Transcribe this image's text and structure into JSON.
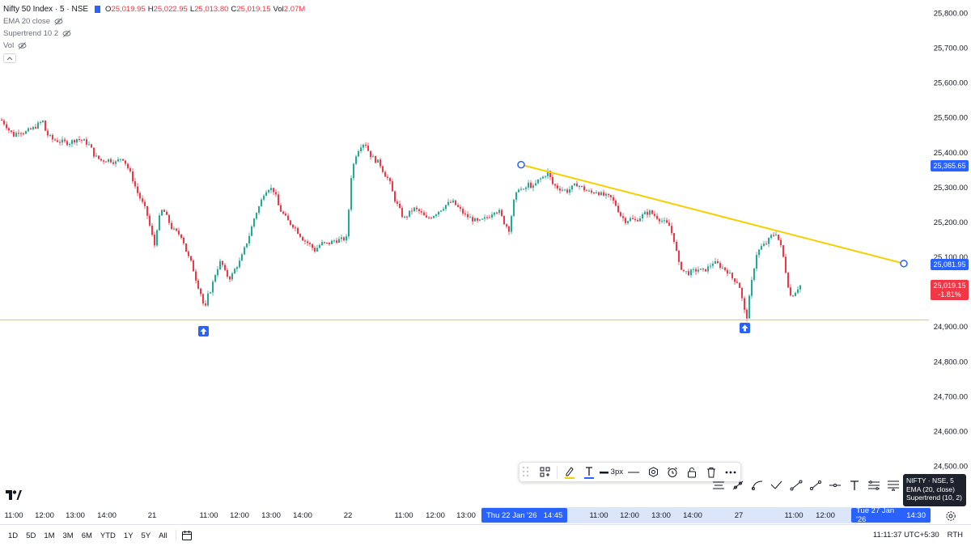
{
  "legend": {
    "title": "Nifty 50 Index · 5 · NSE",
    "ohlc": [
      {
        "key": "O",
        "value": "25,019.95"
      },
      {
        "key": "H",
        "value": "25,022.95"
      },
      {
        "key": "L",
        "value": "25,013.80"
      },
      {
        "key": "C",
        "value": "25,019.15"
      },
      {
        "key": "Vol",
        "value": "2.07M"
      }
    ],
    "indicators": [
      "EMA 20 close",
      "Supertrend 10 2",
      "Vol"
    ]
  },
  "price_axis": {
    "ticks": [
      "25,800.00",
      "25,700.00",
      "25,600.00",
      "25,500.00",
      "25,400.00",
      "25,300.00",
      "25,200.00",
      "25,100.00",
      "25,000.00",
      "24,900.00",
      "24,800.00",
      "24,700.00",
      "24,600.00",
      "24,500.00"
    ],
    "label_trend_start": "25,365.65",
    "label_trend_end": "25,081.95",
    "last_price": "25,019.15",
    "last_change": "-1.81%"
  },
  "time_axis": {
    "ticks": [
      "11:00",
      "12:00",
      "13:00",
      "14:00",
      "21",
      "11:00",
      "12:00",
      "13:00",
      "14:00",
      "22",
      "11:00",
      "12:00",
      "13:00",
      "11:00",
      "12:00",
      "13:00",
      "14:00",
      "27",
      "11:00",
      "12:00"
    ],
    "cursor_start": "Thu 22 Jan '26",
    "cursor_start_time": "14:45",
    "cursor_end": "Tue 27 Jan '26",
    "cursor_end_time": "14:30"
  },
  "drawing_toolbar": {
    "stroke_width": "3px"
  },
  "tooltip": {
    "line1": "NIFTY · NSE, 5",
    "line2": "EMA (20, close)",
    "line3": "Supertrend (10, 2)"
  },
  "bottom_bar": {
    "ranges": [
      "1D",
      "5D",
      "1M",
      "3M",
      "6M",
      "YTD",
      "1Y",
      "5Y",
      "All"
    ],
    "clock": "11:11:37 UTC+5:30",
    "session": "RTH"
  },
  "colors": {
    "up": "#22ab94",
    "down": "#f23645",
    "trendline": "#f5d000",
    "support": "#f5d000",
    "accent": "#2962ff"
  },
  "chart_data": {
    "type": "candlestick",
    "interval": "5m",
    "symbol": "Nifty 50 Index",
    "ylim": [
      24450,
      25850
    ],
    "support_level": 24920,
    "trendline": {
      "start_price": 25365.65,
      "end_price": 25081.95
    },
    "buy_markers": 2,
    "path": [
      [
        0,
        25495
      ],
      [
        6,
        25480
      ],
      [
        10,
        25465
      ],
      [
        16,
        25450
      ],
      [
        22,
        25462
      ],
      [
        30,
        25458
      ],
      [
        40,
        25470
      ],
      [
        48,
        25485
      ],
      [
        52,
        25490
      ],
      [
        56,
        25455
      ],
      [
        64,
        25438
      ],
      [
        74,
        25432
      ],
      [
        84,
        25428
      ],
      [
        94,
        25440
      ],
      [
        104,
        25432
      ],
      [
        110,
        25420
      ],
      [
        116,
        25390
      ],
      [
        124,
        25378
      ],
      [
        134,
        25380
      ],
      [
        142,
        25372
      ],
      [
        150,
        25388
      ],
      [
        156,
        25362
      ],
      [
        162,
        25330
      ],
      [
        168,
        25290
      ],
      [
        174,
        25260
      ],
      [
        180,
        25230
      ],
      [
        186,
        25170
      ],
      [
        190,
        25135
      ],
      [
        194,
        25200
      ],
      [
        200,
        25240
      ],
      [
        206,
        25210
      ],
      [
        212,
        25180
      ],
      [
        218,
        25170
      ],
      [
        224,
        25160
      ],
      [
        230,
        25110
      ],
      [
        236,
        25080
      ],
      [
        242,
        25030
      ],
      [
        248,
        24990
      ],
      [
        252,
        24945
      ],
      [
        256,
        24990
      ],
      [
        260,
        25010
      ],
      [
        266,
        25060
      ],
      [
        272,
        25090
      ],
      [
        278,
        25050
      ],
      [
        284,
        25040
      ],
      [
        290,
        25070
      ],
      [
        296,
        25090
      ],
      [
        302,
        25130
      ],
      [
        308,
        25170
      ],
      [
        314,
        25220
      ],
      [
        320,
        25250
      ],
      [
        326,
        25290
      ],
      [
        332,
        25300
      ],
      [
        338,
        25290
      ],
      [
        344,
        25240
      ],
      [
        350,
        25220
      ],
      [
        356,
        25200
      ],
      [
        362,
        25190
      ],
      [
        368,
        25170
      ],
      [
        374,
        25150
      ],
      [
        380,
        25140
      ],
      [
        388,
        25120
      ],
      [
        396,
        25140
      ],
      [
        404,
        25138
      ],
      [
        412,
        25148
      ],
      [
        420,
        25150
      ],
      [
        428,
        25155
      ],
      [
        432,
        25320
      ],
      [
        438,
        25390
      ],
      [
        444,
        25420
      ],
      [
        450,
        25430
      ],
      [
        456,
        25395
      ],
      [
        462,
        25380
      ],
      [
        468,
        25370
      ],
      [
        474,
        25340
      ],
      [
        480,
        25320
      ],
      [
        486,
        25270
      ],
      [
        492,
        25240
      ],
      [
        498,
        25210
      ],
      [
        504,
        25225
      ],
      [
        510,
        25240
      ],
      [
        518,
        25230
      ],
      [
        526,
        25210
      ],
      [
        534,
        25220
      ],
      [
        542,
        25235
      ],
      [
        550,
        25250
      ],
      [
        558,
        25260
      ],
      [
        566,
        25240
      ],
      [
        574,
        25220
      ],
      [
        582,
        25210
      ],
      [
        590,
        25200
      ],
      [
        598,
        25210
      ],
      [
        604,
        25220
      ],
      [
        610,
        25235
      ],
      [
        616,
        25230
      ],
      [
        622,
        25200
      ],
      [
        628,
        25180
      ],
      [
        634,
        25260
      ],
      [
        640,
        25300
      ],
      [
        646,
        25290
      ],
      [
        652,
        25310
      ],
      [
        658,
        25300
      ],
      [
        664,
        25320
      ],
      [
        670,
        25330
      ],
      [
        676,
        25345
      ],
      [
        682,
        25310
      ],
      [
        688,
        25300
      ],
      [
        694,
        25295
      ],
      [
        700,
        25290
      ],
      [
        706,
        25300
      ],
      [
        712,
        25310
      ],
      [
        718,
        25300
      ],
      [
        724,
        25290
      ],
      [
        730,
        25285
      ],
      [
        736,
        25290
      ],
      [
        742,
        25280
      ],
      [
        748,
        25275
      ],
      [
        754,
        25270
      ],
      [
        760,
        25250
      ],
      [
        766,
        25220
      ],
      [
        772,
        25205
      ],
      [
        778,
        25210
      ],
      [
        784,
        25205
      ],
      [
        790,
        25215
      ],
      [
        796,
        25225
      ],
      [
        802,
        25230
      ],
      [
        808,
        25220
      ],
      [
        814,
        25210
      ],
      [
        820,
        25200
      ],
      [
        826,
        25190
      ],
      [
        832,
        25150
      ],
      [
        838,
        25080
      ],
      [
        844,
        25060
      ],
      [
        850,
        25055
      ],
      [
        856,
        25060
      ],
      [
        862,
        25065
      ],
      [
        868,
        25060
      ],
      [
        874,
        25070
      ],
      [
        880,
        25085
      ],
      [
        886,
        25080
      ],
      [
        892,
        25070
      ],
      [
        898,
        25060
      ],
      [
        904,
        25040
      ],
      [
        910,
        25030
      ],
      [
        914,
        25010
      ],
      [
        918,
        24950
      ],
      [
        922,
        24930
      ],
      [
        926,
        25000
      ],
      [
        930,
        25060
      ],
      [
        934,
        25110
      ],
      [
        940,
        25130
      ],
      [
        946,
        25140
      ],
      [
        952,
        25160
      ],
      [
        958,
        25170
      ],
      [
        964,
        25130
      ],
      [
        968,
        25090
      ],
      [
        972,
        25030
      ],
      [
        976,
        24990
      ],
      [
        980,
        24995
      ],
      [
        984,
        25010
      ],
      [
        988,
        25019
      ]
    ]
  }
}
